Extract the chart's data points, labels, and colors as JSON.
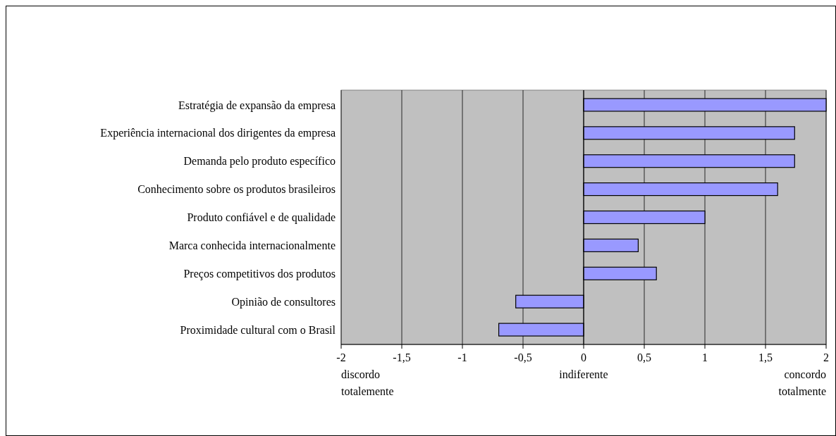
{
  "chart_data": {
    "type": "bar",
    "orientation": "horizontal",
    "categories": [
      "Estratégia de expansão da empresa",
      "Experiência internacional dos dirigentes da empresa",
      "Demanda pelo produto específico",
      "Conhecimento sobre os produtos brasileiros",
      "Produto confiável e de qualidade",
      "Marca conhecida internacionalmente",
      "Preços competitivos dos produtos",
      "Opinião de consultores",
      "Proximidade cultural com o Brasil"
    ],
    "values": [
      2.0,
      1.74,
      1.74,
      1.6,
      1.0,
      0.45,
      0.6,
      -0.56,
      -0.7
    ],
    "color": "#9999ff",
    "xlim": [
      -2,
      2
    ],
    "xticks": [
      {
        "value": -2,
        "label": "-2"
      },
      {
        "value": -1.5,
        "label": "-1,5"
      },
      {
        "value": -1,
        "label": "-1"
      },
      {
        "value": -0.5,
        "label": "-0,5"
      },
      {
        "value": 0,
        "label": "0"
      },
      {
        "value": 0.5,
        "label": "0,5"
      },
      {
        "value": 1,
        "label": "1"
      },
      {
        "value": 1.5,
        "label": "1,5"
      },
      {
        "value": 2,
        "label": "2"
      }
    ],
    "grid": "x",
    "annotations": [
      "discordo totalemente",
      "indiferente",
      "concordo totalmente"
    ]
  }
}
